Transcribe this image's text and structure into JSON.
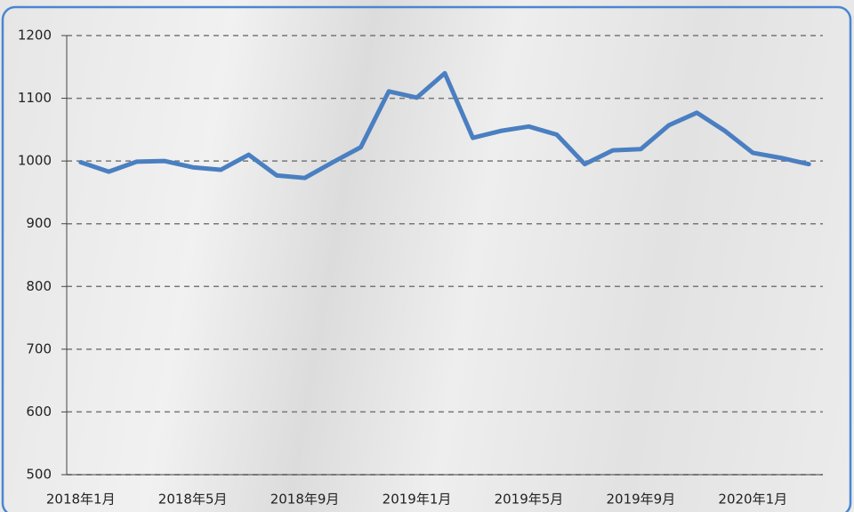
{
  "chart_data": {
    "type": "line",
    "categories": [
      "2018年1月",
      null,
      null,
      null,
      "2018年5月",
      null,
      null,
      null,
      "2018年9月",
      null,
      null,
      null,
      "2019年1月",
      null,
      null,
      null,
      "2019年5月",
      null,
      null,
      null,
      "2019年9月",
      null,
      null,
      null,
      "2020年1月",
      null,
      null
    ],
    "series": [
      {
        "color": "#4a7fc1",
        "values": [
          998,
          983,
          999,
          1000,
          990,
          986,
          1010,
          977,
          973,
          998,
          1022,
          1111,
          1101,
          1140,
          1037,
          1048,
          1055,
          1042,
          995,
          1017,
          1019,
          1057,
          1077,
          1048,
          1013,
          1005,
          995
        ]
      }
    ],
    "ylim": [
      500,
      1200
    ],
    "yticks": [
      500,
      600,
      700,
      800,
      900,
      1000,
      1100,
      1200
    ],
    "grid": true
  }
}
